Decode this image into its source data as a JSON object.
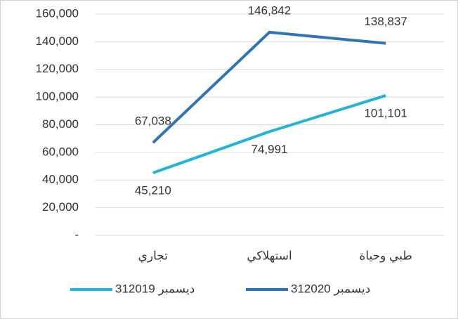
{
  "chart_data": {
    "type": "line",
    "categories": [
      "تجاري",
      "استهلاكي",
      "طبي وحياة"
    ],
    "series": [
      {
        "name": "31ديسمبر 2019",
        "color": "#21b4d6",
        "values": [
          45210,
          74991,
          101101
        ],
        "value_labels": [
          "45,210",
          "74,991",
          "101,101"
        ]
      },
      {
        "name": "31ديسمبر 2020",
        "color": "#2f74b5",
        "values": [
          67038,
          146842,
          138837
        ],
        "value_labels": [
          "67,038",
          "146,842",
          "138,837"
        ]
      }
    ],
    "ylim": [
      0,
      160000
    ],
    "yticks": [
      {
        "value": 0,
        "label": "-"
      },
      {
        "value": 20000,
        "label": "20,000"
      },
      {
        "value": 40000,
        "label": "40,000"
      },
      {
        "value": 60000,
        "label": "60,000"
      },
      {
        "value": 80000,
        "label": "80,000"
      },
      {
        "value": 100000,
        "label": "100,000"
      },
      {
        "value": 120000,
        "label": "120,000"
      },
      {
        "value": 140000,
        "label": "140,000"
      },
      {
        "value": 160000,
        "label": "160,000"
      }
    ],
    "grid": true
  }
}
